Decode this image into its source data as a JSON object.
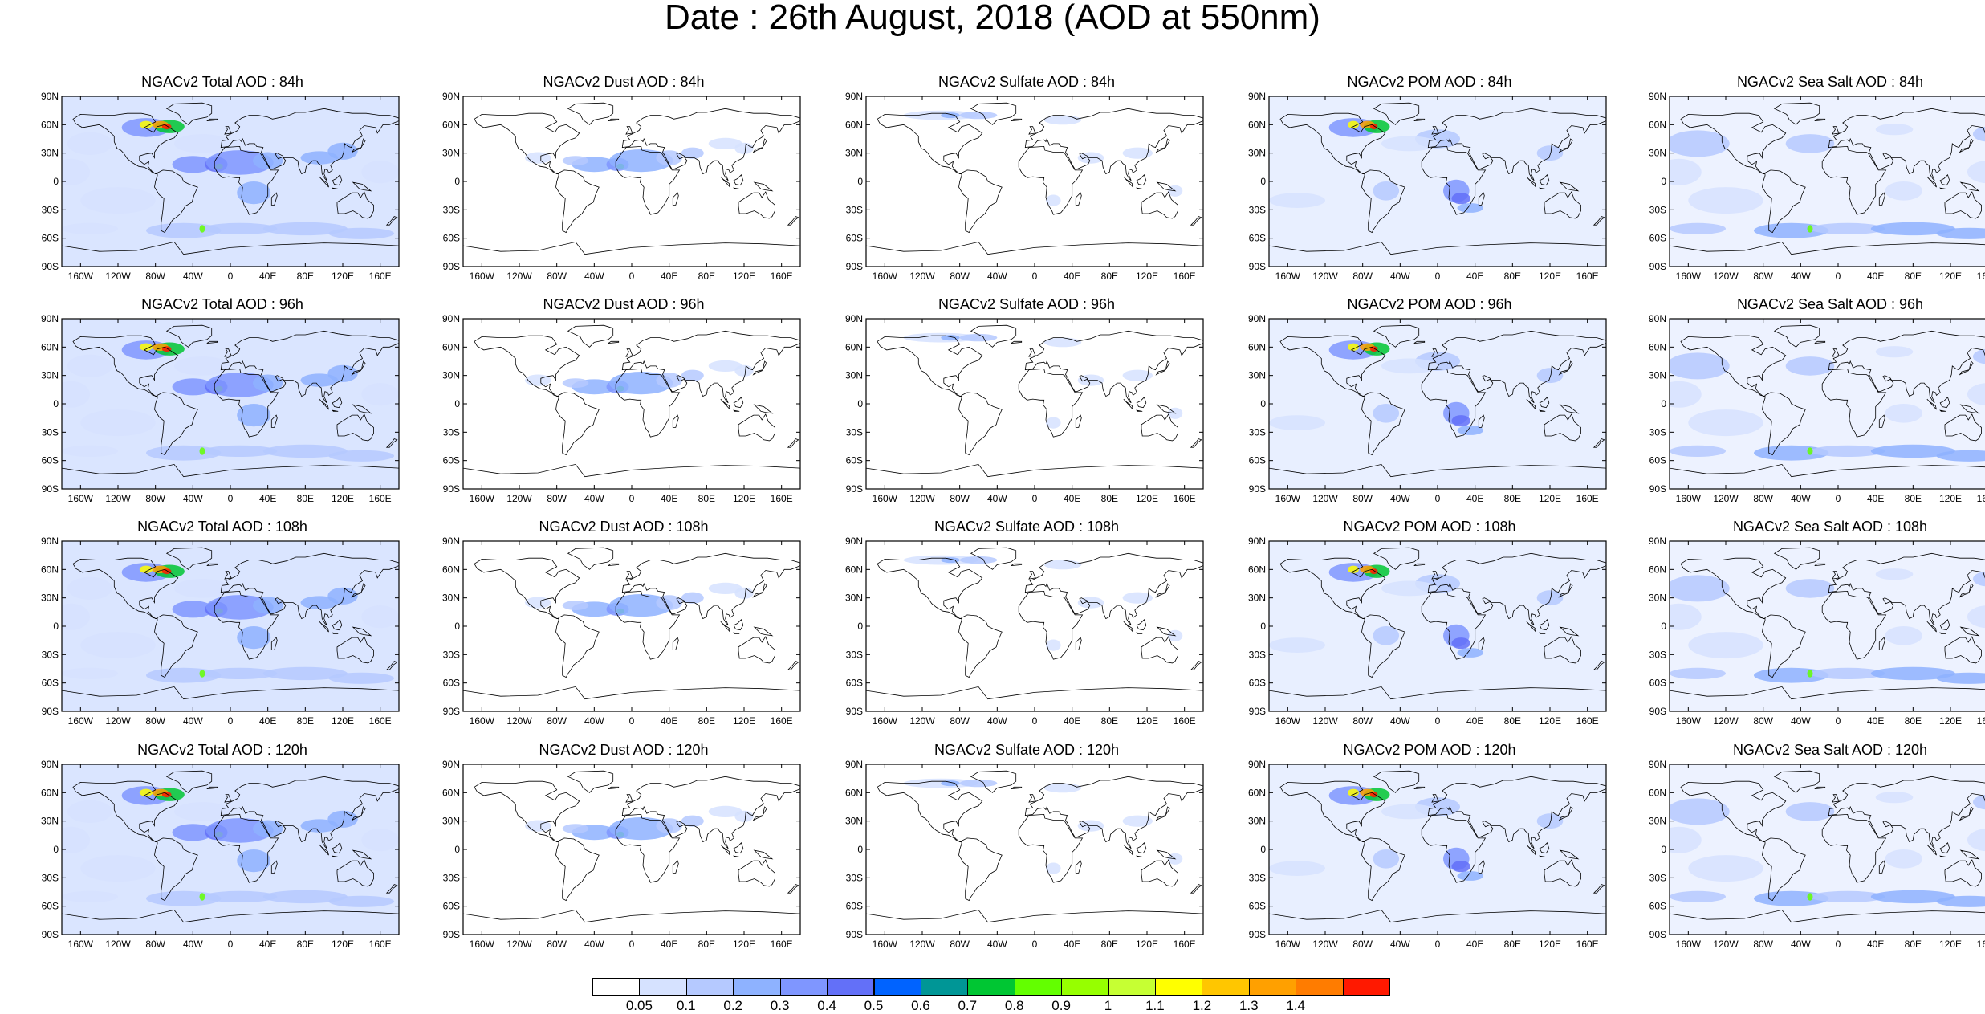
{
  "title": "Date : 26th August, 2018 (AOD at 550nm)",
  "rows": [
    {
      "panels": [
        {
          "label": "NGACv2 Total AOD : 84h",
          "kind": "total"
        },
        {
          "label": "NGACv2 Dust AOD : 84h",
          "kind": "dust"
        },
        {
          "label": "NGACv2 Sulfate AOD : 84h",
          "kind": "sulfate"
        },
        {
          "label": "NGACv2 POM AOD : 84h",
          "kind": "pom"
        },
        {
          "label": "NGACv2 Sea Salt AOD : 84h",
          "kind": "seasalt"
        }
      ]
    },
    {
      "panels": [
        {
          "label": "NGACv2 Total AOD : 96h",
          "kind": "total"
        },
        {
          "label": "NGACv2 Dust AOD : 96h",
          "kind": "dust"
        },
        {
          "label": "NGACv2 Sulfate AOD : 96h",
          "kind": "sulfate"
        },
        {
          "label": "NGACv2 POM AOD : 96h",
          "kind": "pom"
        },
        {
          "label": "NGACv2 Sea Salt AOD : 96h",
          "kind": "seasalt"
        }
      ]
    },
    {
      "panels": [
        {
          "label": "NGACv2 Total AOD : 108h",
          "kind": "total"
        },
        {
          "label": "NGACv2 Dust AOD : 108h",
          "kind": "dust"
        },
        {
          "label": "NGACv2 Sulfate AOD : 108h",
          "kind": "sulfate"
        },
        {
          "label": "NGACv2 POM AOD : 108h",
          "kind": "pom"
        },
        {
          "label": "NGACv2 Sea Salt AOD : 108h",
          "kind": "seasalt"
        }
      ]
    },
    {
      "panels": [
        {
          "label": "NGACv2 Total AOD : 120h",
          "kind": "total"
        },
        {
          "label": "NGACv2 Dust AOD : 120h",
          "kind": "dust"
        },
        {
          "label": "NGACv2 Sulfate AOD : 120h",
          "kind": "sulfate"
        },
        {
          "label": "NGACv2 POM AOD : 120h",
          "kind": "pom"
        },
        {
          "label": "NGACv2 Sea Salt  AOD : 120h",
          "kind": "seasalt"
        }
      ]
    }
  ],
  "lat_ticks": [
    "90N",
    "60N",
    "30N",
    "0",
    "30S",
    "60S",
    "90S"
  ],
  "lon_ticks": [
    "160W",
    "120W",
    "80W",
    "40W",
    "0",
    "40E",
    "80E",
    "120E",
    "160E"
  ],
  "lon_tick_values": [
    -160,
    -120,
    -80,
    -40,
    0,
    40,
    80,
    120,
    160
  ],
  "lat_tick_values": [
    90,
    60,
    30,
    0,
    -30,
    -60,
    -90
  ],
  "colorbar": {
    "colors": [
      "#ffffff",
      "#d6e2ff",
      "#b5c9ff",
      "#8eb2ff",
      "#7f96ff",
      "#6370f8",
      "#0063ff",
      "#009696",
      "#00c633",
      "#63ff00",
      "#96ff00",
      "#c6ff33",
      "#ffff00",
      "#ffc600",
      "#ffa000",
      "#ff7c00",
      "#ff1900"
    ],
    "labels": [
      "0.05",
      "0.1",
      "0.2",
      "0.3",
      "0.4",
      "0.5",
      "0.6",
      "0.7",
      "0.8",
      "0.9",
      "1",
      "1.1",
      "1.2",
      "1.3",
      "1.4"
    ]
  }
}
